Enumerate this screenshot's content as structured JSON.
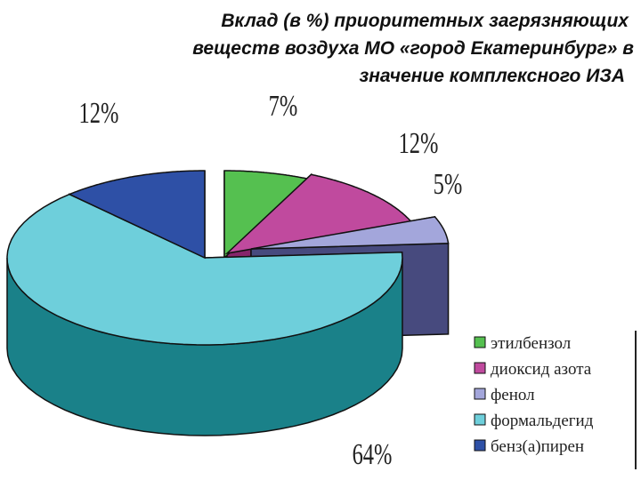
{
  "title": {
    "line1": "Вклад (в %)  приоритетных  загрязняющих",
    "line2": "веществ воздуха МО «город Екатеринбург» в",
    "line3": "значение  комплексного ИЗА"
  },
  "chart_data": {
    "type": "pie",
    "variant": "3d-exploded",
    "title": "Вклад (в %)  приоритетных  загрязняющих веществ воздуха МО «город Екатеринбург» в значение  комплексного ИЗА",
    "series": [
      {
        "name": "этилбензол",
        "value": 7,
        "label": "7%",
        "top_color": "#55c050",
        "side_color": "#2f8a2e"
      },
      {
        "name": "диоксид азота",
        "value": 12,
        "label": "12%",
        "top_color": "#c04a9e",
        "side_color": "#86256b"
      },
      {
        "name": "фенол",
        "value": 5,
        "label": "5%",
        "top_color": "#a3a6db",
        "side_color": "#474a7e"
      },
      {
        "name": "формальдегид",
        "value": 64,
        "label": "64%",
        "top_color": "#6ecfdb",
        "side_color": "#1a8189"
      },
      {
        "name": "бенз(а)пирен",
        "value": 12,
        "label": "12%",
        "top_color": "#2e50a6",
        "side_color": "#1a2a66"
      }
    ],
    "legend_position": "bottom-right"
  }
}
